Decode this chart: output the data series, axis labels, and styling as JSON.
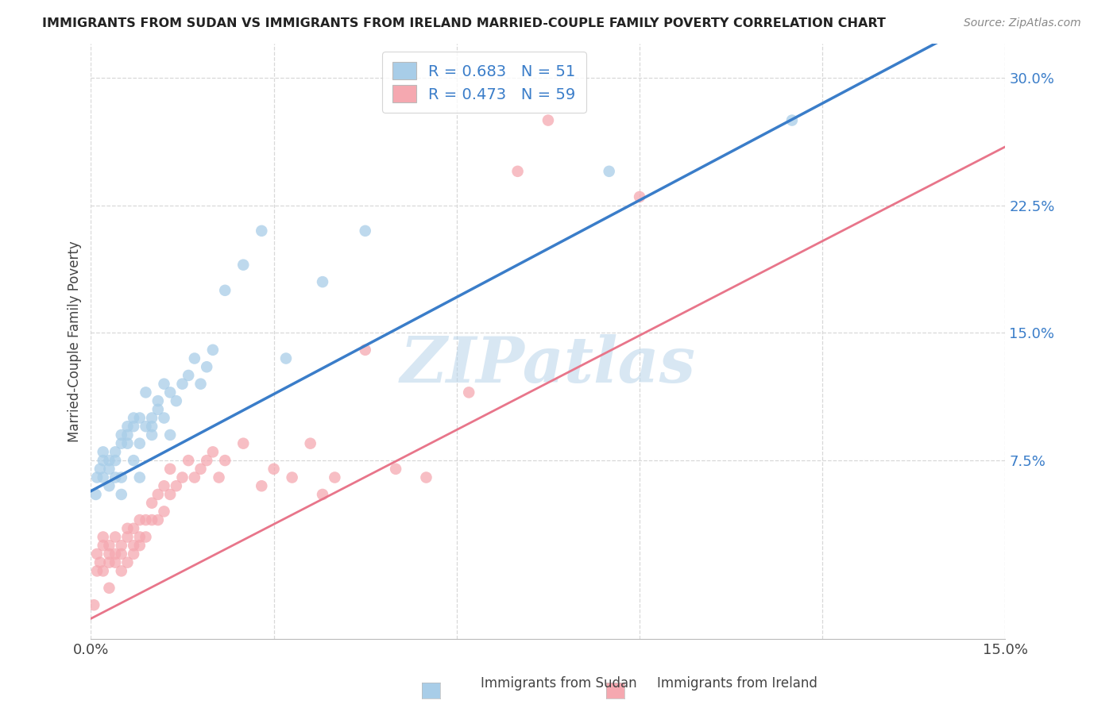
{
  "title": "IMMIGRANTS FROM SUDAN VS IMMIGRANTS FROM IRELAND MARRIED-COUPLE FAMILY POVERTY CORRELATION CHART",
  "source": "Source: ZipAtlas.com",
  "ylabel": "Married-Couple Family Poverty",
  "xlim": [
    0.0,
    0.15
  ],
  "ylim": [
    -0.03,
    0.32
  ],
  "ytick_positions": [
    0.075,
    0.15,
    0.225,
    0.3
  ],
  "ytick_labels": [
    "7.5%",
    "15.0%",
    "22.5%",
    "30.0%"
  ],
  "xtick_positions": [
    0.0,
    0.03,
    0.06,
    0.09,
    0.12,
    0.15
  ],
  "xtick_labels": [
    "0.0%",
    "",
    "",
    "",
    "",
    "15.0%"
  ],
  "sudan_color": "#a8cde8",
  "ireland_color": "#f5a8b0",
  "sudan_line_color": "#3a7dc9",
  "ireland_line_color": "#e8758a",
  "ytick_color": "#3a7dc9",
  "sudan_R": 0.683,
  "sudan_N": 51,
  "ireland_R": 0.473,
  "ireland_N": 59,
  "sudan_x": [
    0.0008,
    0.001,
    0.0015,
    0.002,
    0.002,
    0.002,
    0.003,
    0.003,
    0.003,
    0.004,
    0.004,
    0.004,
    0.005,
    0.005,
    0.005,
    0.005,
    0.006,
    0.006,
    0.006,
    0.007,
    0.007,
    0.007,
    0.008,
    0.008,
    0.008,
    0.009,
    0.009,
    0.01,
    0.01,
    0.01,
    0.011,
    0.011,
    0.012,
    0.012,
    0.013,
    0.013,
    0.014,
    0.015,
    0.016,
    0.017,
    0.018,
    0.019,
    0.02,
    0.022,
    0.025,
    0.028,
    0.032,
    0.038,
    0.045,
    0.085,
    0.115
  ],
  "sudan_y": [
    0.055,
    0.065,
    0.07,
    0.075,
    0.065,
    0.08,
    0.075,
    0.07,
    0.06,
    0.08,
    0.065,
    0.075,
    0.085,
    0.09,
    0.065,
    0.055,
    0.09,
    0.085,
    0.095,
    0.095,
    0.1,
    0.075,
    0.1,
    0.085,
    0.065,
    0.095,
    0.115,
    0.1,
    0.095,
    0.09,
    0.105,
    0.11,
    0.12,
    0.1,
    0.115,
    0.09,
    0.11,
    0.12,
    0.125,
    0.135,
    0.12,
    0.13,
    0.14,
    0.175,
    0.19,
    0.21,
    0.135,
    0.18,
    0.21,
    0.245,
    0.275
  ],
  "ireland_x": [
    0.0005,
    0.001,
    0.001,
    0.0015,
    0.002,
    0.002,
    0.002,
    0.003,
    0.003,
    0.003,
    0.003,
    0.004,
    0.004,
    0.004,
    0.005,
    0.005,
    0.005,
    0.006,
    0.006,
    0.006,
    0.007,
    0.007,
    0.007,
    0.008,
    0.008,
    0.008,
    0.009,
    0.009,
    0.01,
    0.01,
    0.011,
    0.011,
    0.012,
    0.012,
    0.013,
    0.013,
    0.014,
    0.015,
    0.016,
    0.017,
    0.018,
    0.019,
    0.02,
    0.021,
    0.022,
    0.025,
    0.028,
    0.03,
    0.033,
    0.036,
    0.038,
    0.04,
    0.045,
    0.05,
    0.055,
    0.062,
    0.07,
    0.075,
    0.09
  ],
  "ireland_y": [
    -0.01,
    0.01,
    0.02,
    0.015,
    0.025,
    0.01,
    0.03,
    0.02,
    0.015,
    0.0,
    0.025,
    0.02,
    0.015,
    0.03,
    0.025,
    0.02,
    0.01,
    0.035,
    0.03,
    0.015,
    0.025,
    0.035,
    0.02,
    0.04,
    0.03,
    0.025,
    0.04,
    0.03,
    0.05,
    0.04,
    0.055,
    0.04,
    0.06,
    0.045,
    0.055,
    0.07,
    0.06,
    0.065,
    0.075,
    0.065,
    0.07,
    0.075,
    0.08,
    0.065,
    0.075,
    0.085,
    0.06,
    0.07,
    0.065,
    0.085,
    0.055,
    0.065,
    0.14,
    0.07,
    0.065,
    0.115,
    0.245,
    0.275,
    0.23
  ],
  "sudan_line_intercept": 0.057,
  "sudan_line_slope": 1.9,
  "ireland_line_intercept": -0.018,
  "ireland_line_slope": 1.85,
  "watermark": "ZIPatlas",
  "background_color": "#ffffff",
  "grid_color": "#d8d8d8"
}
